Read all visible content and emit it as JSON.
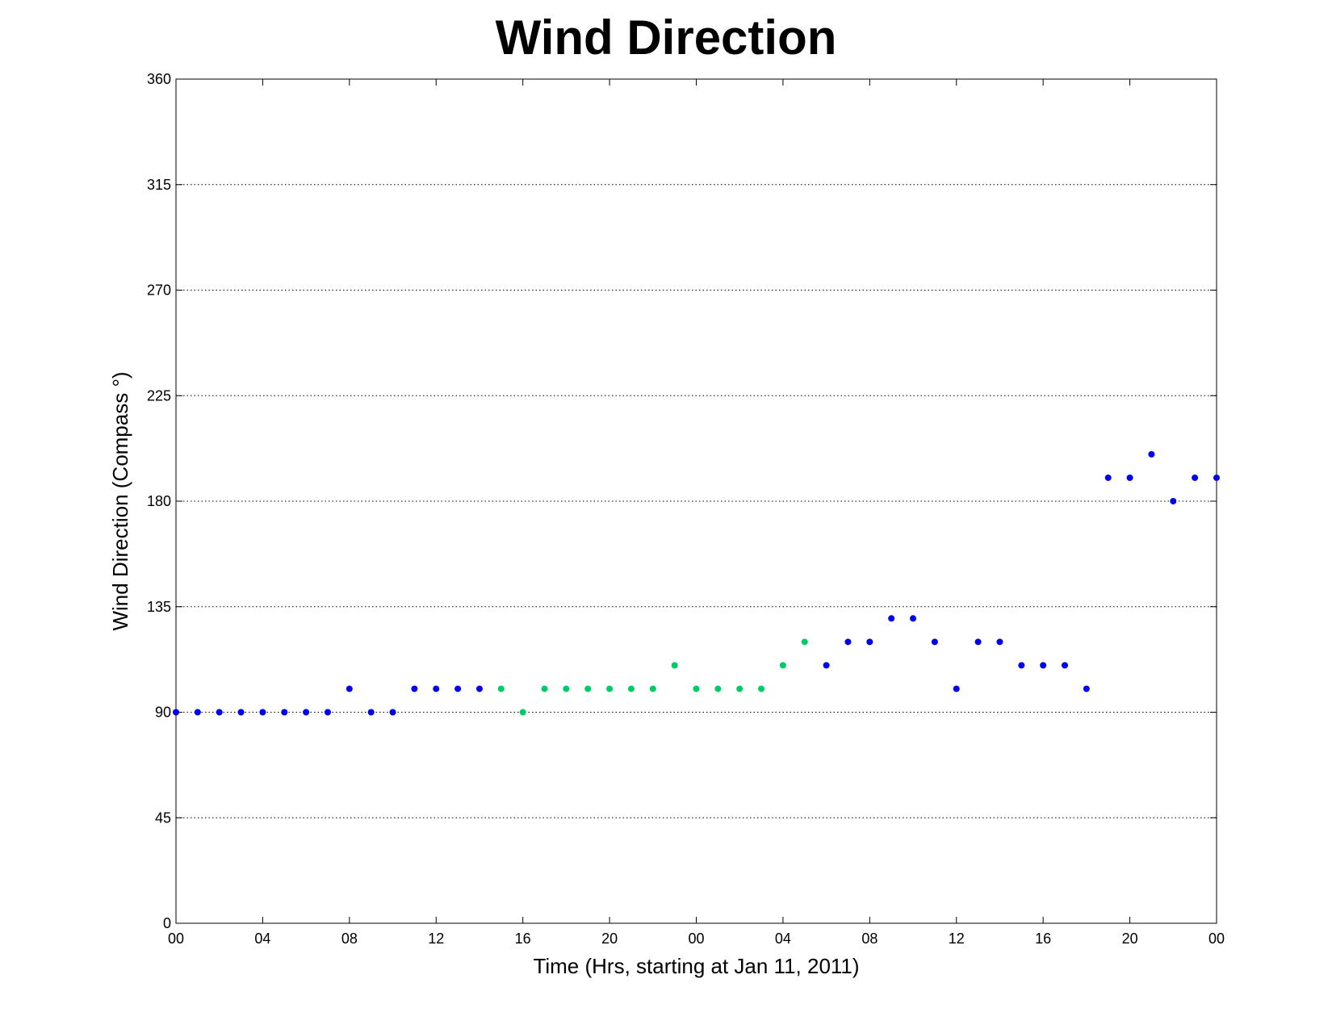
{
  "chart_data": {
    "type": "scatter",
    "title": "Wind Direction",
    "xlabel": "Time (Hrs, starting at Jan 11, 2011)",
    "ylabel": "Wind Direction (Compass  °)",
    "xlim": [
      "Jan 11, 2011 00:00",
      "Jan 13, 2011 00:00"
    ],
    "ylim": [
      0,
      360
    ],
    "yticks": [
      0,
      45,
      90,
      135,
      180,
      225,
      270,
      315,
      360
    ],
    "xtick_labels": [
      "00",
      "04",
      "08",
      "12",
      "16",
      "20",
      "00",
      "04",
      "08",
      "12",
      "16",
      "20",
      "00"
    ],
    "grid": "horizontal dotted",
    "colors": {
      "blue": "#0000ee",
      "green": "#00cc66"
    },
    "points": [
      {
        "time": "Jan 11, 2011 00:00",
        "value": 90,
        "color": "blue"
      },
      {
        "time": "Jan 11, 2011 01:00",
        "value": 90,
        "color": "blue"
      },
      {
        "time": "Jan 11, 2011 02:00",
        "value": 90,
        "color": "blue"
      },
      {
        "time": "Jan 11, 2011 03:00",
        "value": 90,
        "color": "blue"
      },
      {
        "time": "Jan 11, 2011 04:00",
        "value": 90,
        "color": "blue"
      },
      {
        "time": "Jan 11, 2011 05:00",
        "value": 90,
        "color": "blue"
      },
      {
        "time": "Jan 11, 2011 06:00",
        "value": 90,
        "color": "blue"
      },
      {
        "time": "Jan 11, 2011 07:00",
        "value": 90,
        "color": "blue"
      },
      {
        "time": "Jan 11, 2011 08:00",
        "value": 100,
        "color": "blue"
      },
      {
        "time": "Jan 11, 2011 09:00",
        "value": 90,
        "color": "blue"
      },
      {
        "time": "Jan 11, 2011 10:00",
        "value": 90,
        "color": "blue"
      },
      {
        "time": "Jan 11, 2011 11:00",
        "value": 100,
        "color": "blue"
      },
      {
        "time": "Jan 11, 2011 12:00",
        "value": 100,
        "color": "blue"
      },
      {
        "time": "Jan 11, 2011 13:00",
        "value": 100,
        "color": "blue"
      },
      {
        "time": "Jan 11, 2011 14:00",
        "value": 100,
        "color": "blue"
      },
      {
        "time": "Jan 11, 2011 15:00",
        "value": 100,
        "color": "green"
      },
      {
        "time": "Jan 11, 2011 16:00",
        "value": 90,
        "color": "green"
      },
      {
        "time": "Jan 11, 2011 17:00",
        "value": 100,
        "color": "green"
      },
      {
        "time": "Jan 11, 2011 18:00",
        "value": 100,
        "color": "green"
      },
      {
        "time": "Jan 11, 2011 19:00",
        "value": 100,
        "color": "green"
      },
      {
        "time": "Jan 11, 2011 20:00",
        "value": 100,
        "color": "green"
      },
      {
        "time": "Jan 11, 2011 21:00",
        "value": 100,
        "color": "green"
      },
      {
        "time": "Jan 11, 2011 22:00",
        "value": 100,
        "color": "green"
      },
      {
        "time": "Jan 11, 2011 23:00",
        "value": 110,
        "color": "green"
      },
      {
        "time": "Jan 12, 2011 00:00",
        "value": 100,
        "color": "green"
      },
      {
        "time": "Jan 12, 2011 01:00",
        "value": 100,
        "color": "green"
      },
      {
        "time": "Jan 12, 2011 02:00",
        "value": 100,
        "color": "green"
      },
      {
        "time": "Jan 12, 2011 03:00",
        "value": 100,
        "color": "green"
      },
      {
        "time": "Jan 12, 2011 04:00",
        "value": 110,
        "color": "green"
      },
      {
        "time": "Jan 12, 2011 05:00",
        "value": 120,
        "color": "green"
      },
      {
        "time": "Jan 12, 2011 06:00",
        "value": 110,
        "color": "blue"
      },
      {
        "time": "Jan 12, 2011 07:00",
        "value": 120,
        "color": "blue"
      },
      {
        "time": "Jan 12, 2011 08:00",
        "value": 120,
        "color": "blue"
      },
      {
        "time": "Jan 12, 2011 09:00",
        "value": 130,
        "color": "blue"
      },
      {
        "time": "Jan 12, 2011 10:00",
        "value": 130,
        "color": "blue"
      },
      {
        "time": "Jan 12, 2011 11:00",
        "value": 120,
        "color": "blue"
      },
      {
        "time": "Jan 12, 2011 12:00",
        "value": 100,
        "color": "blue"
      },
      {
        "time": "Jan 12, 2011 13:00",
        "value": 120,
        "color": "blue"
      },
      {
        "time": "Jan 12, 2011 14:00",
        "value": 120,
        "color": "blue"
      },
      {
        "time": "Jan 12, 2011 15:00",
        "value": 110,
        "color": "blue"
      },
      {
        "time": "Jan 12, 2011 16:00",
        "value": 110,
        "color": "blue"
      },
      {
        "time": "Jan 12, 2011 17:00",
        "value": 110,
        "color": "blue"
      },
      {
        "time": "Jan 12, 2011 18:00",
        "value": 100,
        "color": "blue"
      },
      {
        "time": "Jan 12, 2011 19:00",
        "value": 190,
        "color": "blue"
      },
      {
        "time": "Jan 12, 2011 20:00",
        "value": 190,
        "color": "blue"
      },
      {
        "time": "Jan 12, 2011 21:00",
        "value": 200,
        "color": "blue"
      },
      {
        "time": "Jan 12, 2011 22:00",
        "value": 180,
        "color": "blue"
      },
      {
        "time": "Jan 12, 2011 23:00",
        "value": 190,
        "color": "blue"
      },
      {
        "time": "Jan 13, 2011 00:00",
        "value": 190,
        "color": "blue"
      }
    ]
  }
}
